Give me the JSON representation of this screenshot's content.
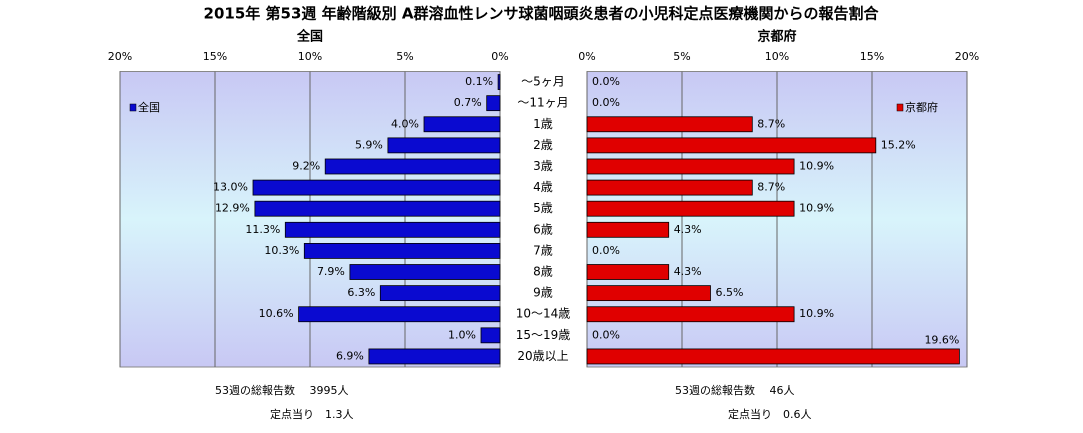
{
  "title": "2015年 第53週 年齢階級別 A群溶血性レンサ球菌咽頭炎患者の小児科定点医療機関からの報告割合",
  "chart_data": [
    {
      "type": "bar",
      "orientation": "horizontal",
      "title": "全国",
      "xreversed": true,
      "categories": [
        "～5ヶ月",
        "～11ヶ月",
        "1歳",
        "2歳",
        "3歳",
        "4歳",
        "5歳",
        "6歳",
        "7歳",
        "8歳",
        "9歳",
        "10～14歳",
        "15～19歳",
        "20歳以上"
      ],
      "series": [
        {
          "name": "全国",
          "color": "#0a0ad0",
          "values": [
            0.1,
            0.7,
            4.0,
            5.9,
            9.2,
            13.0,
            12.9,
            11.3,
            10.3,
            7.9,
            6.3,
            10.6,
            1.0,
            6.9
          ],
          "value_labels": [
            "0.1%",
            "0.7%",
            "4.0%",
            "5.9%",
            "9.2%",
            "13.0%",
            "12.9%",
            "11.3%",
            "10.3%",
            "7.9%",
            "6.3%",
            "10.6%",
            "1.0%",
            "6.9%"
          ]
        }
      ],
      "xlim": [
        0,
        20
      ],
      "xticks": [
        {
          "value": 0,
          "label": "0%"
        },
        {
          "value": 5,
          "label": "5%"
        },
        {
          "value": 10,
          "label": "10%"
        },
        {
          "value": 15,
          "label": "15%"
        },
        {
          "value": 20,
          "label": "20%"
        }
      ],
      "grid": true,
      "legend": "upper left",
      "notes": [
        "53週の総報告数　 3995人",
        "定点当り　1.3人"
      ]
    },
    {
      "type": "bar",
      "orientation": "horizontal",
      "title": "京都府",
      "xreversed": false,
      "series": [
        {
          "name": "京都府",
          "color": "#e00000",
          "values": [
            0.0,
            0.0,
            8.7,
            15.2,
            10.9,
            8.7,
            10.9,
            4.3,
            0.0,
            4.3,
            6.5,
            10.9,
            0.0,
            19.6
          ],
          "value_labels": [
            "0.0%",
            "0.0%",
            "8.7%",
            "15.2%",
            "10.9%",
            "8.7%",
            "10.9%",
            "4.3%",
            "0.0%",
            "4.3%",
            "6.5%",
            "10.9%",
            "0.0%",
            "19.6%"
          ]
        }
      ],
      "xlim": [
        0,
        20
      ],
      "xticks": [
        {
          "value": 0,
          "label": "0%"
        },
        {
          "value": 5,
          "label": "5%"
        },
        {
          "value": 10,
          "label": "10%"
        },
        {
          "value": 15,
          "label": "15%"
        },
        {
          "value": 20,
          "label": "20%"
        }
      ],
      "grid": true,
      "legend": "upper right",
      "notes": [
        "53週の総報告数　 46人",
        "定点当り　0.6人"
      ]
    }
  ]
}
